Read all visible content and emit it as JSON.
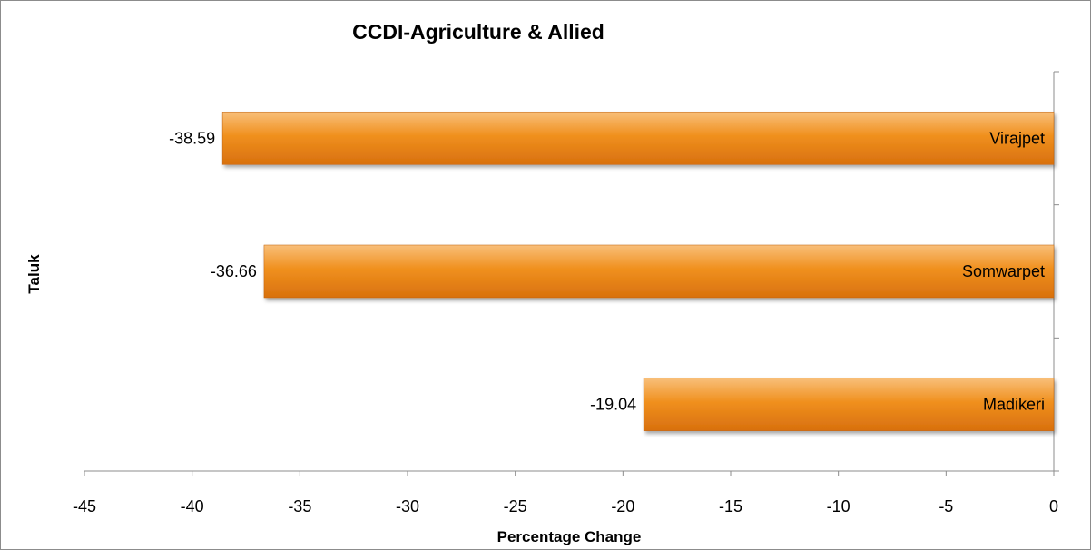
{
  "chart_data": {
    "type": "bar",
    "orientation": "horizontal",
    "title": "CCDI-Agriculture & Allied",
    "xlabel": "Percentage Change",
    "ylabel": "Taluk",
    "categories": [
      "Madikeri",
      "Somwarpet",
      "Virajpet"
    ],
    "values": [
      -19.04,
      -36.66,
      -38.59
    ],
    "data_labels": [
      "-19.04",
      "-36.66",
      "-38.59"
    ],
    "xlim": [
      -45,
      0
    ],
    "x_ticks": [
      -45,
      -40,
      -35,
      -30,
      -25,
      -20,
      -15,
      -10,
      -5,
      0
    ],
    "x_tick_labels": [
      "-45",
      "-40",
      "-35",
      "-30",
      "-25",
      "-20",
      "-15",
      "-10",
      "-5",
      "0"
    ],
    "grid": false,
    "legend": "none",
    "bar_color": "#f0901e",
    "bar_color_light": "#f8bf7a",
    "bar_color_dark": "#d8700e"
  }
}
